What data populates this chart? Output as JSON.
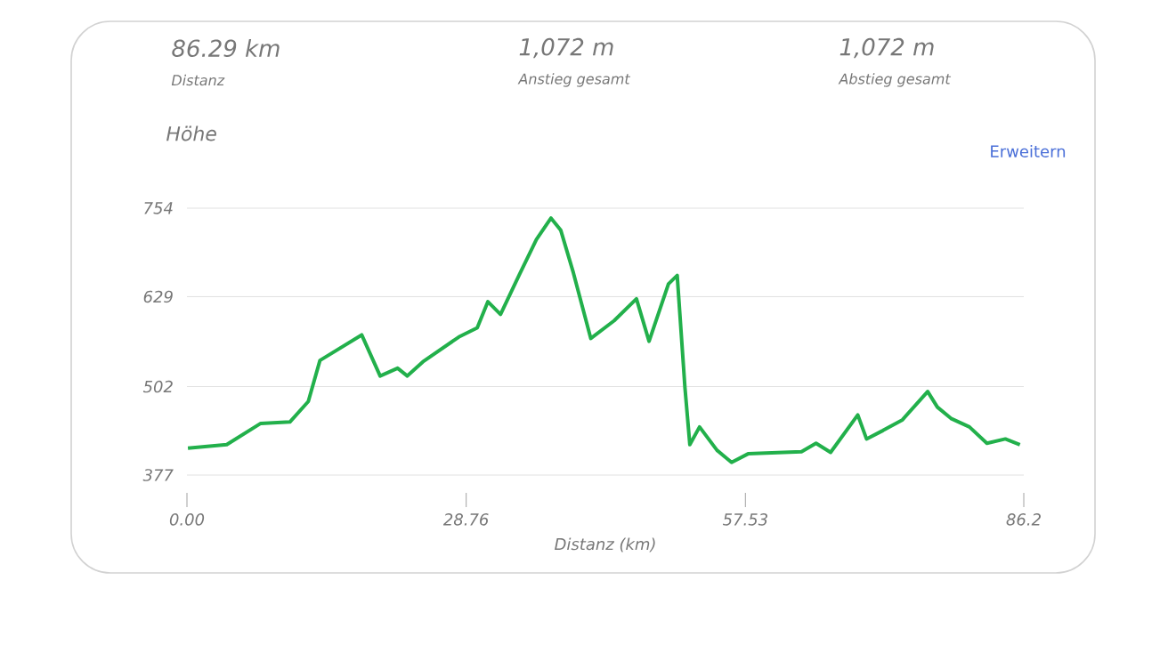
{
  "chart_data": {
    "type": "line",
    "ylabel": "Höhe",
    "xlabel": "Distanz (km)",
    "annotations": [
      "86.29 km",
      "Distanz",
      "1,072 m",
      "Anstieg gesamt",
      "1,072 m",
      "Abstieg gesamt",
      "Erweitern"
    ],
    "x": [
      0.1,
      4.1,
      7.6,
      10.6,
      12.5,
      13.7,
      18,
      19.9,
      21.7,
      22.7,
      24.3,
      28,
      29.9,
      31,
      32.3,
      34.2,
      36,
      37.5,
      38.5,
      39.8,
      41.6,
      44,
      46.3,
      47.6,
      49.6,
      50.5,
      51.3,
      51.8,
      52.8,
      54.6,
      56.1,
      57.8,
      63.3,
      64.8,
      66.3,
      69.1,
      70,
      71.7,
      73.7,
      76.3,
      77.3,
      78.7,
      80.6,
      82.4,
      84.3,
      85.8
    ],
    "series": [
      {
        "color": "#22b04b",
        "values": [
          415,
          420,
          450,
          452,
          481,
          539,
          575,
          517,
          528,
          517,
          537,
          572,
          585,
          622,
          604,
          659,
          710,
          740,
          723,
          663,
          570,
          595,
          626,
          566,
          647,
          659,
          500,
          420,
          445,
          412,
          395,
          407,
          410,
          422,
          409,
          462,
          428,
          440,
          455,
          495,
          473,
          457,
          445,
          422,
          428,
          420
        ]
      }
    ],
    "xlim": [
      0,
      86.2
    ],
    "ylim": [
      377,
      754
    ],
    "xticks": [
      {
        "value": 0,
        "label": "0.00"
      },
      28.76,
      57.53,
      86.2
    ],
    "yticks": [
      377,
      502,
      629,
      754
    ],
    "grid": "y",
    "marker": "none",
    "line_style": "solid"
  }
}
